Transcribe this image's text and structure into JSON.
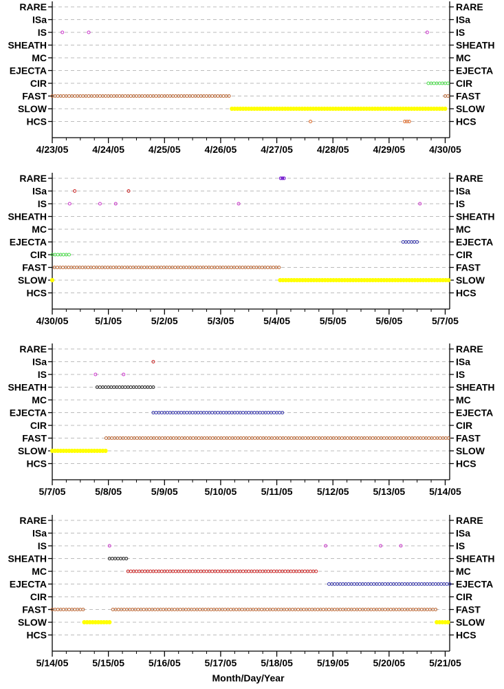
{
  "chart_data": [
    {
      "type": "scatter",
      "categories": [
        "RARE",
        "ISa",
        "IS",
        "SHEATH",
        "MC",
        "EJECTA",
        "CIR",
        "FAST",
        "SLOW",
        "HCS"
      ],
      "x_ticks": [
        "4/23/05",
        "4/24/05",
        "4/25/05",
        "4/26/05",
        "4/27/05",
        "4/28/05",
        "4/29/05",
        "4/30/05"
      ],
      "xlim": [
        0,
        7.08
      ],
      "grid": true,
      "series": [
        {
          "category": "IS",
          "color": "#cc33cc",
          "points": [
            0.18,
            0.65,
            6.68
          ]
        },
        {
          "category": "CIR",
          "color": "#44dd44",
          "ranges": [
            [
              6.7,
              7.08
            ]
          ]
        },
        {
          "category": "FAST",
          "color": "#bb6633",
          "ranges": [
            [
              0.0,
              3.19
            ],
            [
              7.0,
              7.08
            ]
          ]
        },
        {
          "category": "SLOW",
          "color": "#ffff00",
          "ranges": [
            [
              3.2,
              7.0
            ]
          ]
        },
        {
          "category": "HCS",
          "color": "#dd6622",
          "points": [
            4.6,
            6.28,
            6.32,
            6.36
          ]
        }
      ]
    },
    {
      "type": "scatter",
      "categories": [
        "RARE",
        "ISa",
        "IS",
        "SHEATH",
        "MC",
        "EJECTA",
        "CIR",
        "FAST",
        "SLOW",
        "HCS"
      ],
      "x_ticks": [
        "4/30/05",
        "5/1/05",
        "5/2/05",
        "5/3/05",
        "5/4/05",
        "5/5/05",
        "5/6/05",
        "5/7/05"
      ],
      "xlim": [
        0,
        7.08
      ],
      "grid": true,
      "series": [
        {
          "category": "RARE",
          "color": "#6600cc",
          "points": [
            4.07,
            4.1,
            4.13
          ]
        },
        {
          "category": "ISa",
          "color": "#cc2222",
          "points": [
            0.4,
            1.36
          ]
        },
        {
          "category": "IS",
          "color": "#cc33cc",
          "points": [
            0.31,
            0.85,
            1.13,
            3.32,
            6.55
          ]
        },
        {
          "category": "EJECTA",
          "color": "#3333aa",
          "ranges": [
            [
              6.25,
              6.52
            ]
          ]
        },
        {
          "category": "CIR",
          "color": "#44dd44",
          "ranges": [
            [
              0.0,
              0.3
            ]
          ]
        },
        {
          "category": "FAST",
          "color": "#bb6633",
          "ranges": [
            [
              0.04,
              4.05
            ]
          ]
        },
        {
          "category": "SLOW",
          "color": "#ffff00",
          "ranges": [
            [
              0.0,
              0.03
            ],
            [
              4.06,
              7.08
            ]
          ]
        }
      ]
    },
    {
      "type": "scatter",
      "categories": [
        "RARE",
        "ISa",
        "IS",
        "SHEATH",
        "MC",
        "EJECTA",
        "CIR",
        "FAST",
        "SLOW",
        "HCS"
      ],
      "x_ticks": [
        "5/7/05",
        "5/8/05",
        "5/9/05",
        "5/10/05",
        "5/11/05",
        "5/12/05",
        "5/13/05",
        "5/14/05"
      ],
      "xlim": [
        0,
        7.08
      ],
      "grid": true,
      "series": [
        {
          "category": "ISa",
          "color": "#cc2222",
          "points": [
            1.8
          ]
        },
        {
          "category": "IS",
          "color": "#cc33cc",
          "points": [
            0.77,
            1.27
          ]
        },
        {
          "category": "SHEATH",
          "color": "#222222",
          "ranges": [
            [
              0.8,
              1.8
            ]
          ]
        },
        {
          "category": "EJECTA",
          "color": "#3333aa",
          "ranges": [
            [
              1.8,
              4.13
            ]
          ]
        },
        {
          "category": "FAST",
          "color": "#bb6633",
          "ranges": [
            [
              0.96,
              7.08
            ]
          ]
        },
        {
          "category": "SLOW",
          "color": "#ffff00",
          "ranges": [
            [
              0.0,
              0.96
            ]
          ]
        }
      ]
    },
    {
      "type": "scatter",
      "categories": [
        "RARE",
        "ISa",
        "IS",
        "SHEATH",
        "MC",
        "EJECTA",
        "CIR",
        "FAST",
        "SLOW",
        "HCS"
      ],
      "x_ticks": [
        "5/14/05",
        "5/15/05",
        "5/16/05",
        "5/17/05",
        "5/18/05",
        "5/19/05",
        "5/20/05",
        "5/21/05"
      ],
      "xlim": [
        0,
        7.08
      ],
      "grid": true,
      "xlabel": "Month/Day/Year",
      "series": [
        {
          "category": "IS",
          "color": "#cc33cc",
          "points": [
            1.02,
            4.87,
            5.85,
            6.21
          ]
        },
        {
          "category": "SHEATH",
          "color": "#222222",
          "ranges": [
            [
              1.02,
              1.35
            ]
          ]
        },
        {
          "category": "MC",
          "color": "#cc2222",
          "ranges": [
            [
              1.35,
              4.73
            ]
          ]
        },
        {
          "category": "EJECTA",
          "color": "#3333aa",
          "ranges": [
            [
              4.93,
              7.08
            ]
          ]
        },
        {
          "category": "FAST",
          "color": "#bb6633",
          "ranges": [
            [
              0.0,
              0.57
            ],
            [
              1.08,
              6.85
            ]
          ]
        },
        {
          "category": "SLOW",
          "color": "#ffff00",
          "ranges": [
            [
              0.57,
              1.06
            ],
            [
              6.85,
              7.08
            ]
          ]
        }
      ]
    }
  ]
}
